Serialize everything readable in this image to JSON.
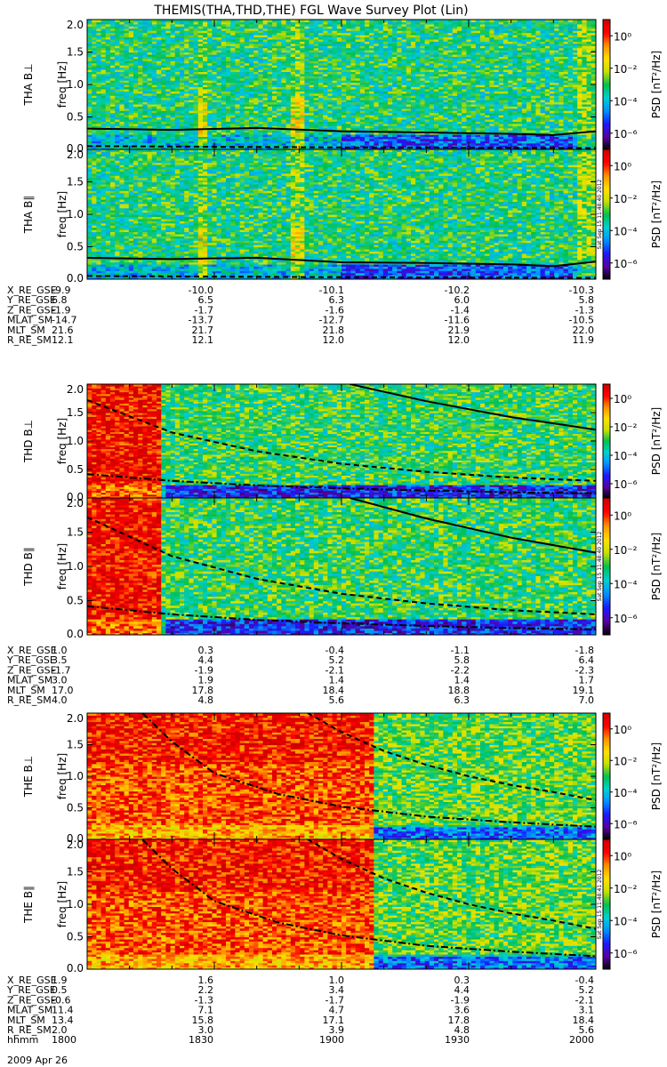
{
  "chart_data": {
    "type": "heatmap",
    "title": "THEMIS(THA,THD,THE) FGL Wave Survey Plot (Lin)",
    "date_label": "2009 Apr 26",
    "colorbar": {
      "label": "PSD [nT²/Hz]",
      "ticks": [
        "10⁰",
        "10⁻²",
        "10⁻⁴",
        "10⁻⁶"
      ],
      "tick_values": [
        0,
        -2,
        -4,
        -6
      ],
      "log_range": [
        -7,
        1
      ],
      "colors": [
        "#000000",
        "#5a00a0",
        "#1a1aff",
        "#0090ff",
        "#00d0d0",
        "#00c050",
        "#c8e000",
        "#ffe000",
        "#ff9000",
        "#ff0000",
        "#d00000"
      ]
    },
    "y_axis": {
      "label": "freq [Hz]",
      "ylim": [
        0,
        2
      ],
      "ticks": [
        "0.0",
        "0.5",
        "1.0",
        "1.5",
        "2.0"
      ],
      "tick_values": [
        0,
        0.5,
        1,
        1.5,
        2
      ]
    },
    "x_axis": {
      "label": "hhmm",
      "ticks": [
        "1800",
        "1830",
        "1900",
        "1930",
        "2000"
      ],
      "xlim_minutes": [
        0,
        120
      ]
    },
    "panels": [
      {
        "name": "THA B⊥",
        "probe": "THA",
        "base_psd": -3.2,
        "lines": [
          {
            "style": "solid",
            "x": [
              0,
              20,
              40,
              60,
              80,
              100,
              110,
              120
            ],
            "y": [
              0.32,
              0.3,
              0.33,
              0.28,
              0.26,
              0.24,
              0.22,
              0.28
            ]
          },
          {
            "style": "dashed",
            "x": [
              0,
              60,
              120
            ],
            "y": [
              0.05,
              0.03,
              0.02
            ]
          }
        ]
      },
      {
        "name": "THA B∥",
        "probe": "THA",
        "base_psd": -3.2,
        "stamp": "Sat Sep 15 11:48:40 2012",
        "lines": [
          {
            "style": "solid",
            "x": [
              0,
              20,
              40,
              60,
              80,
              100,
              110,
              120
            ],
            "y": [
              0.33,
              0.31,
              0.33,
              0.26,
              0.25,
              0.23,
              0.2,
              0.27
            ]
          },
          {
            "style": "dashed",
            "x": [
              0,
              60,
              120
            ],
            "y": [
              0.05,
              0.03,
              0.02
            ]
          }
        ]
      },
      {
        "name": "THD B⊥",
        "probe": "THD",
        "base_psd": -3.0,
        "lines": [
          {
            "style": "solid",
            "x": [
              62,
              80,
              100,
              120
            ],
            "y": [
              2.0,
              1.7,
              1.42,
              1.2
            ]
          },
          {
            "style": "dashed",
            "x": [
              0,
              20,
              40,
              60,
              80,
              100,
              120
            ],
            "y": [
              1.72,
              1.15,
              0.82,
              0.6,
              0.46,
              0.36,
              0.3
            ]
          },
          {
            "style": "dashdot",
            "x": [
              0,
              20,
              40,
              60,
              80,
              100,
              120
            ],
            "y": [
              0.42,
              0.3,
              0.22,
              0.17,
              0.13,
              0.1,
              0.08
            ]
          }
        ]
      },
      {
        "name": "THD B∥",
        "probe": "THD",
        "base_psd": -3.0,
        "stamp": "Sat Sep 15 11:48:40 2012",
        "lines": [
          {
            "style": "solid",
            "x": [
              62,
              80,
              100,
              120
            ],
            "y": [
              2.0,
              1.7,
              1.42,
              1.2
            ]
          },
          {
            "style": "dashed",
            "x": [
              0,
              20,
              40,
              60,
              80,
              100,
              120
            ],
            "y": [
              1.72,
              1.15,
              0.82,
              0.6,
              0.46,
              0.36,
              0.3
            ]
          },
          {
            "style": "dashdot",
            "x": [
              0,
              20,
              40,
              60,
              80,
              100,
              120
            ],
            "y": [
              0.42,
              0.3,
              0.22,
              0.17,
              0.13,
              0.1,
              0.08
            ]
          }
        ]
      },
      {
        "name": "THE B⊥",
        "probe": "THE",
        "base_psd": -1.8,
        "lines": [
          {
            "style": "dashdot",
            "x": [
              13,
              20,
              30,
              45,
              60,
              80,
              100,
              120
            ],
            "y": [
              2.0,
              1.55,
              1.05,
              0.72,
              0.52,
              0.36,
              0.27,
              0.2
            ]
          },
          {
            "style": "dashed",
            "x": [
              52,
              60,
              70,
              80,
              90,
              100,
              110,
              120
            ],
            "y": [
              2.0,
              1.7,
              1.4,
              1.18,
              1.0,
              0.86,
              0.75,
              0.62
            ]
          }
        ]
      },
      {
        "name": "THE B∥",
        "probe": "THE",
        "base_psd": -1.8,
        "stamp": "Sat Sep 15 11:48:41 2012",
        "lines": [
          {
            "style": "dashdot",
            "x": [
              13,
              20,
              30,
              45,
              60,
              80,
              100,
              120
            ],
            "y": [
              2.0,
              1.55,
              1.05,
              0.72,
              0.52,
              0.36,
              0.27,
              0.2
            ]
          },
          {
            "style": "dashed",
            "x": [
              52,
              60,
              70,
              80,
              90,
              100,
              110,
              120
            ],
            "y": [
              2.0,
              1.7,
              1.4,
              1.18,
              1.0,
              0.86,
              0.75,
              0.62
            ]
          }
        ]
      }
    ],
    "ephemeris": [
      {
        "probe": "THA",
        "rows": [
          {
            "label": "X_RE_GSE",
            "values": [
              "-9.9",
              "-10.0",
              "-10.1",
              "-10.2",
              "-10.3"
            ]
          },
          {
            "label": "Y_RE_GSE",
            "values": [
              "6.8",
              "6.5",
              "6.3",
              "6.0",
              "5.8"
            ]
          },
          {
            "label": "Z_RE_GSE",
            "values": [
              "-1.9",
              "-1.7",
              "-1.6",
              "-1.4",
              "-1.3"
            ]
          },
          {
            "label": "MLAT_SM",
            "values": [
              "-14.7",
              "-13.7",
              "-12.7",
              "-11.6",
              "-10.5"
            ]
          },
          {
            "label": "MLT_SM",
            "values": [
              "21.6",
              "21.7",
              "21.8",
              "21.9",
              "22.0"
            ]
          },
          {
            "label": "R_RE_SM",
            "values": [
              "12.1",
              "12.1",
              "12.0",
              "12.0",
              "11.9"
            ]
          }
        ]
      },
      {
        "probe": "THD",
        "rows": [
          {
            "label": "X_RE_GSE",
            "values": [
              "1.0",
              "0.3",
              "-0.4",
              "-1.1",
              "-1.8"
            ]
          },
          {
            "label": "Y_RE_GSE",
            "values": [
              "3.5",
              "4.4",
              "5.2",
              "5.8",
              "6.4"
            ]
          },
          {
            "label": "Z_RE_GSE",
            "values": [
              "-1.7",
              "-1.9",
              "-2.1",
              "-2.2",
              "-2.3"
            ]
          },
          {
            "label": "MLAT_SM",
            "values": [
              "3.0",
              "1.9",
              "1.4",
              "1.4",
              "1.7"
            ]
          },
          {
            "label": "MLT_SM",
            "values": [
              "17.0",
              "17.8",
              "18.4",
              "18.8",
              "19.1"
            ]
          },
          {
            "label": "R_RE_SM",
            "values": [
              "4.0",
              "4.8",
              "5.6",
              "6.3",
              "7.0"
            ]
          }
        ]
      },
      {
        "probe": "THE",
        "rows": [
          {
            "label": "X_RE_GSE",
            "values": [
              "1.9",
              "1.6",
              "1.0",
              "0.3",
              "-0.4"
            ]
          },
          {
            "label": "Y_RE_GSE",
            "values": [
              "0.5",
              "2.2",
              "3.4",
              "4.4",
              "5.2"
            ]
          },
          {
            "label": "Z_RE_GSE",
            "values": [
              "-0.6",
              "-1.3",
              "-1.7",
              "-1.9",
              "-2.1"
            ]
          },
          {
            "label": "MLAT_SM",
            "values": [
              "11.4",
              "7.1",
              "4.7",
              "3.6",
              "3.1"
            ]
          },
          {
            "label": "MLT_SM",
            "values": [
              "13.4",
              "15.8",
              "17.1",
              "17.8",
              "18.4"
            ]
          },
          {
            "label": "R_RE_SM",
            "values": [
              "2.0",
              "3.0",
              "3.9",
              "4.8",
              "5.6"
            ]
          },
          {
            "label": "hhmm",
            "values": [
              "1800",
              "1830",
              "1900",
              "1930",
              "2000"
            ]
          }
        ]
      }
    ]
  }
}
